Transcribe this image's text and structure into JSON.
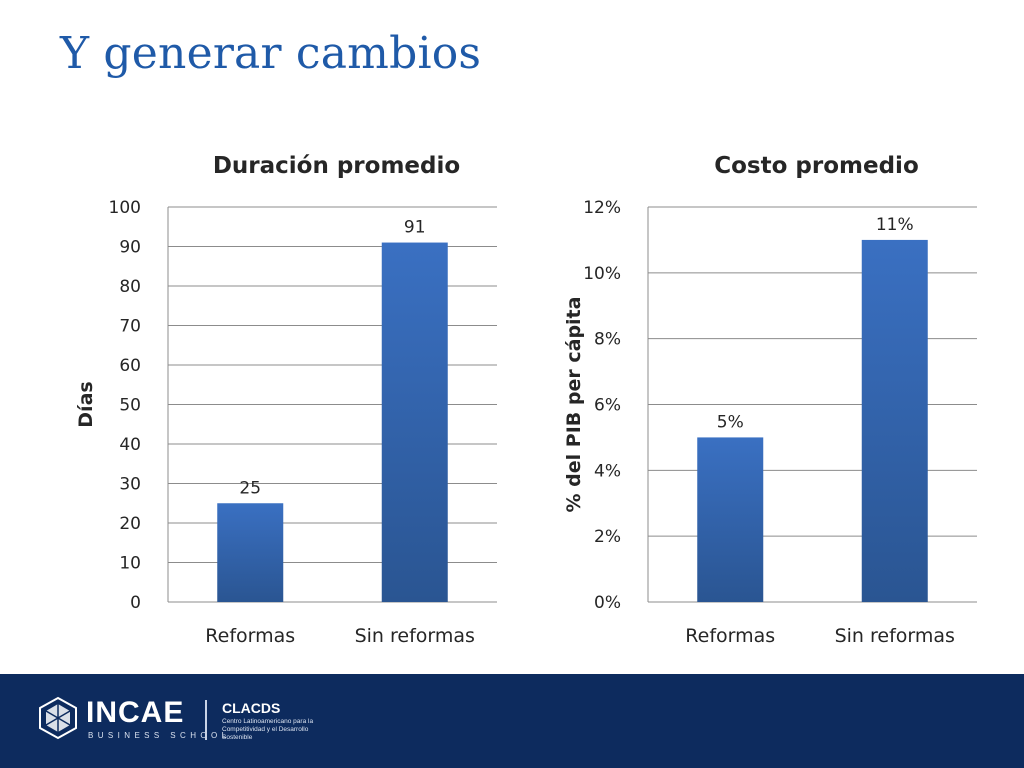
{
  "slide": {
    "title": "Y generar cambios"
  },
  "chart_data": [
    {
      "type": "bar",
      "title": "Duración promedio",
      "xlabel": "",
      "ylabel": "Días",
      "categories": [
        "Reformas",
        "Sin reformas"
      ],
      "values": [
        25,
        91
      ],
      "value_labels": [
        "25",
        "91"
      ],
      "ylim": [
        0,
        100
      ],
      "yticks": [
        0,
        10,
        20,
        30,
        40,
        50,
        60,
        70,
        80,
        90,
        100
      ],
      "ytick_labels": [
        "0",
        "10",
        "20",
        "30",
        "40",
        "50",
        "60",
        "70",
        "80",
        "90",
        "100"
      ],
      "grid": true,
      "bar_color": "#3a70c2"
    },
    {
      "type": "bar",
      "title": "Costo promedio",
      "xlabel": "",
      "ylabel": "% del PIB per cápita",
      "categories": [
        "Reformas",
        "Sin reformas"
      ],
      "values": [
        0.05,
        0.11
      ],
      "value_labels": [
        "5%",
        "11%"
      ],
      "ylim": [
        0,
        0.12
      ],
      "yticks": [
        0,
        0.02,
        0.04,
        0.06,
        0.08,
        0.1,
        0.12
      ],
      "ytick_labels": [
        "0%",
        "2%",
        "4%",
        "6%",
        "8%",
        "10%",
        "12%"
      ],
      "grid": true,
      "bar_color": "#3a70c2"
    }
  ],
  "footer": {
    "logo_icon": "incae-crystal-icon",
    "brand_name": "INCAE",
    "brand_sub": "BUSINESS SCHOOL",
    "partner_name": "CLACDS",
    "partner_desc": "Centro Latinoamericano para la Competitividad y el Desarrollo Sostenible",
    "background_color": "#0d2b5e"
  }
}
